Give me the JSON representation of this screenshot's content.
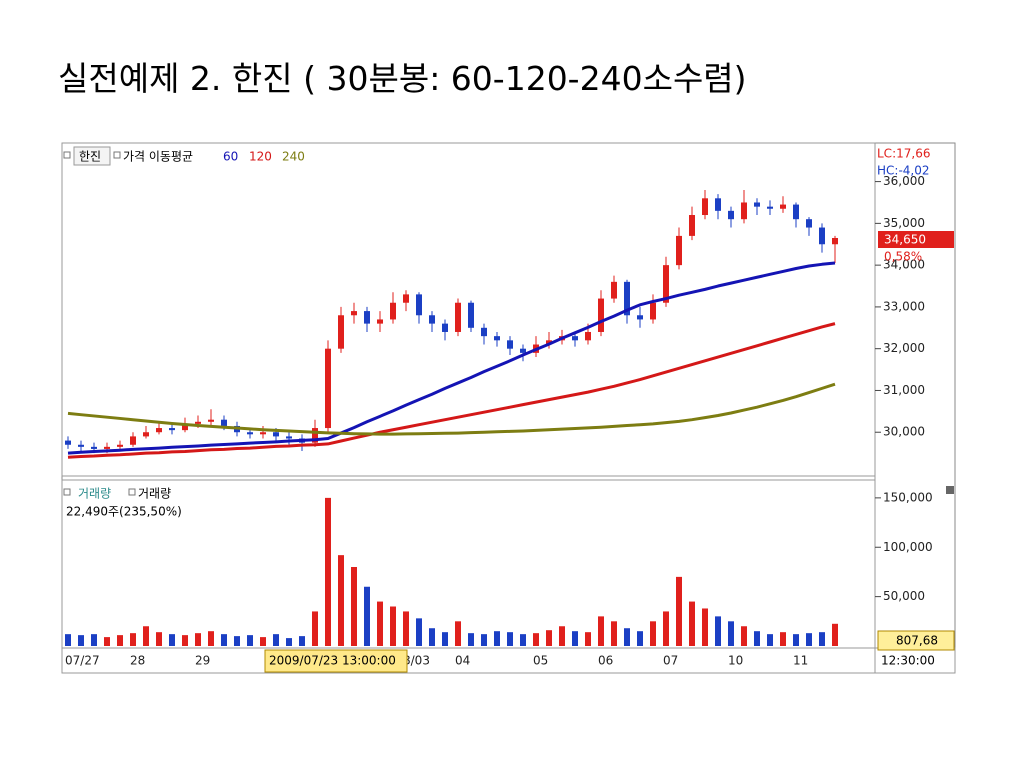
{
  "title": "실전예제 2. 한진 ( 30분봉: 60-120-240소수렴)",
  "chart_data": [
    {
      "type": "candlestick",
      "symbol": "한진",
      "legend_label": "가격 이동평균",
      "categories": [
        "07/27",
        null,
        null,
        null,
        null,
        "28",
        null,
        null,
        null,
        null,
        "29",
        null,
        null,
        null,
        null,
        null,
        null,
        null,
        null,
        null,
        null,
        null,
        null,
        null,
        null,
        null,
        "8/03",
        null,
        null,
        null,
        "04",
        null,
        null,
        null,
        null,
        null,
        "05",
        null,
        null,
        null,
        null,
        "06",
        null,
        null,
        null,
        null,
        "07",
        null,
        null,
        null,
        null,
        "10",
        null,
        null,
        null,
        null,
        "11",
        null,
        null,
        null
      ],
      "open": [
        29800,
        29700,
        29650,
        29600,
        29650,
        29700,
        29900,
        30000,
        30100,
        30050,
        30200,
        30250,
        30300,
        30150,
        30000,
        29950,
        30000,
        29900,
        29850,
        29750,
        30100,
        32000,
        32800,
        32900,
        32600,
        32700,
        33100,
        33300,
        32800,
        32600,
        32400,
        33100,
        32500,
        32300,
        32200,
        32000,
        31900,
        32100,
        32200,
        32300,
        32200,
        32400,
        33200,
        33600,
        32800,
        32700,
        33100,
        34000,
        34700,
        35200,
        35600,
        35300,
        35100,
        35500,
        35400,
        35350,
        35450,
        35100,
        34900,
        34500
      ],
      "high": [
        29900,
        29800,
        29750,
        29750,
        29800,
        30000,
        30150,
        30250,
        30200,
        30350,
        30400,
        30550,
        30400,
        30250,
        30100,
        30150,
        30100,
        30000,
        29950,
        30300,
        32200,
        33000,
        33100,
        33000,
        32900,
        33350,
        33400,
        33350,
        32900,
        32700,
        33200,
        33150,
        32600,
        32400,
        32300,
        32100,
        32300,
        32400,
        32450,
        32400,
        32600,
        33400,
        33750,
        33650,
        33000,
        33300,
        34200,
        34900,
        35400,
        35800,
        35700,
        35400,
        35800,
        35600,
        35550,
        35650,
        35500,
        35150,
        35000,
        34700
      ],
      "low": [
        29600,
        29550,
        29500,
        29500,
        29550,
        29650,
        29850,
        29950,
        29950,
        30000,
        30100,
        30150,
        30050,
        29900,
        29850,
        29850,
        29800,
        29700,
        29550,
        29650,
        30000,
        31900,
        32600,
        32400,
        32400,
        32600,
        32900,
        32600,
        32400,
        32200,
        32300,
        32400,
        32100,
        32050,
        31850,
        31700,
        31800,
        32000,
        32100,
        32050,
        32100,
        32300,
        33100,
        32600,
        32500,
        32600,
        33000,
        33900,
        34600,
        35100,
        35100,
        34900,
        35000,
        35200,
        35200,
        35250,
        34900,
        34700,
        34300,
        34050
      ],
      "close": [
        29700,
        29650,
        29600,
        29650,
        29700,
        29900,
        30000,
        30100,
        30050,
        30200,
        30250,
        30300,
        30150,
        30000,
        29950,
        30000,
        29900,
        29850,
        29750,
        30100,
        32000,
        32800,
        32900,
        32600,
        32700,
        33100,
        33300,
        32800,
        32600,
        32400,
        33100,
        32500,
        32300,
        32200,
        32000,
        31900,
        32100,
        32200,
        32300,
        32200,
        32400,
        33200,
        33600,
        32800,
        32700,
        33100,
        34000,
        34700,
        35200,
        35600,
        35300,
        35100,
        35500,
        35400,
        35350,
        35450,
        35100,
        34900,
        34500,
        34650
      ],
      "up_color": "#e0201c",
      "down_color": "#1b3fc4",
      "series": [
        {
          "name": "60",
          "color": "#1414b4",
          "values": [
            29500,
            29520,
            29540,
            29555,
            29570,
            29590,
            29605,
            29620,
            29640,
            29655,
            29670,
            29690,
            29705,
            29720,
            29740,
            29755,
            29770,
            29790,
            29805,
            29820,
            29850,
            29980,
            30110,
            30250,
            30380,
            30510,
            30650,
            30780,
            30910,
            31050,
            31180,
            31310,
            31450,
            31580,
            31710,
            31850,
            31980,
            32110,
            32250,
            32380,
            32510,
            32650,
            32780,
            32920,
            33050,
            33130,
            33200,
            33280,
            33350,
            33420,
            33500,
            33570,
            33640,
            33710,
            33780,
            33850,
            33920,
            33980,
            34020,
            34050
          ]
        },
        {
          "name": "120",
          "color": "#d41818",
          "values": [
            29400,
            29420,
            29430,
            29450,
            29460,
            29480,
            29500,
            29510,
            29530,
            29540,
            29560,
            29580,
            29590,
            29610,
            29620,
            29640,
            29660,
            29670,
            29690,
            29700,
            29720,
            29790,
            29860,
            29930,
            30000,
            30060,
            30120,
            30180,
            30240,
            30300,
            30360,
            30420,
            30480,
            30540,
            30600,
            30660,
            30720,
            30780,
            30840,
            30900,
            30960,
            31030,
            31100,
            31180,
            31260,
            31350,
            31440,
            31530,
            31620,
            31710,
            31800,
            31890,
            31980,
            32070,
            32160,
            32250,
            32340,
            32430,
            32520,
            32600
          ]
        },
        {
          "name": "240",
          "color": "#7d7d12",
          "values": [
            30450,
            30420,
            30390,
            30360,
            30330,
            30300,
            30270,
            30240,
            30210,
            30185,
            30160,
            30140,
            30120,
            30100,
            30080,
            30060,
            30045,
            30030,
            30015,
            30000,
            29985,
            29975,
            29965,
            29960,
            29955,
            29955,
            29960,
            29965,
            29970,
            29975,
            29980,
            29990,
            30000,
            30010,
            30020,
            30030,
            30045,
            30060,
            30075,
            30090,
            30105,
            30120,
            30140,
            30160,
            30180,
            30200,
            30230,
            30260,
            30300,
            30350,
            30400,
            30460,
            30530,
            30600,
            30680,
            30760,
            30850,
            30950,
            31050,
            31150
          ]
        }
      ],
      "ylim": [
        29000,
        36900
      ],
      "yticks": [
        {
          "value": 30000,
          "label": "30,000"
        },
        {
          "value": 31000,
          "label": "31,000"
        },
        {
          "value": 32000,
          "label": "32,000"
        },
        {
          "value": 33000,
          "label": "33,000"
        },
        {
          "value": 34000,
          "label": "34,000"
        },
        {
          "value": 35000,
          "label": "35,000"
        },
        {
          "value": 36000,
          "label": "36,000"
        }
      ],
      "annotations": {
        "lc": "LC:17,66",
        "hc": "HC:-4,02",
        "last_price": "34,650",
        "change": "0,58%",
        "cursor_date": "2009/07/23 13:00:00",
        "cursor_time": "12:30:00"
      }
    },
    {
      "type": "bar",
      "indicator": "거래량",
      "legend_label": "거래량",
      "info": "22,490주(235,50%)",
      "values": [
        12000,
        11000,
        12000,
        9000,
        11000,
        13000,
        20000,
        14000,
        12000,
        11000,
        13000,
        15000,
        12000,
        10000,
        11000,
        9000,
        12000,
        8000,
        10000,
        35000,
        150000,
        92000,
        80000,
        60000,
        45000,
        40000,
        35000,
        28000,
        18000,
        14000,
        25000,
        13000,
        12000,
        15000,
        14000,
        12000,
        13000,
        16000,
        20000,
        15000,
        14000,
        30000,
        25000,
        18000,
        15000,
        25000,
        35000,
        70000,
        45000,
        38000,
        30000,
        25000,
        20000,
        15000,
        12000,
        14000,
        12000,
        13000,
        14000,
        22490
      ],
      "ylim": [
        0,
        160000
      ],
      "yticks": [
        {
          "value": 50000,
          "label": "50,000"
        },
        {
          "value": 100000,
          "label": "100,000"
        },
        {
          "value": 150000,
          "label": "150,000"
        }
      ],
      "annotations": {
        "cursor_value": "807,68"
      }
    }
  ]
}
